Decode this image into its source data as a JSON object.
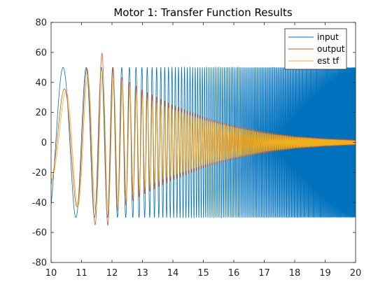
{
  "chart_data": {
    "type": "line",
    "title": "Motor 1: Transfer Function Results",
    "xlabel": "",
    "ylabel": "",
    "xlim": [
      10,
      20
    ],
    "ylim": [
      -80,
      80
    ],
    "xticks": [
      "10",
      "11",
      "12",
      "13",
      "14",
      "15",
      "16",
      "17",
      "18",
      "19",
      "20"
    ],
    "yticks": [
      "-80",
      "-60",
      "-40",
      "-20",
      "0",
      "20",
      "40",
      "60",
      "80"
    ],
    "grid": false,
    "legend_position": "top-right",
    "series": [
      {
        "name": "input",
        "color": "#0072BD",
        "description": "chirp sine wave, constant amplitude 50, frequency increasing with time",
        "amplitude": 50
      },
      {
        "name": "output",
        "color": "#D95319",
        "description": "motor response, peaks near 60 around x=11.7, decaying toward 0 by x=20",
        "peaks": [
          [
            10.1,
            30
          ],
          [
            10.8,
            42
          ],
          [
            11.3,
            52
          ],
          [
            11.7,
            60
          ],
          [
            12.2,
            45
          ],
          [
            13.0,
            35
          ],
          [
            14.0,
            25
          ],
          [
            15.0,
            17
          ],
          [
            16.0,
            11
          ],
          [
            17.0,
            7
          ],
          [
            18.0,
            4
          ],
          [
            19.0,
            2.5
          ],
          [
            20.0,
            1.5
          ]
        ]
      },
      {
        "name": "est tf",
        "color": "#EDB120",
        "description": "estimated transfer function response, similar envelope to output",
        "peaks": [
          [
            10.1,
            25
          ],
          [
            10.8,
            42
          ],
          [
            11.3,
            45
          ],
          [
            11.7,
            48
          ],
          [
            12.2,
            40
          ],
          [
            13.0,
            30
          ],
          [
            14.0,
            22
          ],
          [
            15.0,
            15
          ],
          [
            16.0,
            10
          ],
          [
            17.0,
            6
          ],
          [
            18.0,
            3.5
          ],
          [
            19.0,
            2
          ],
          [
            20.0,
            1
          ]
        ]
      }
    ]
  }
}
